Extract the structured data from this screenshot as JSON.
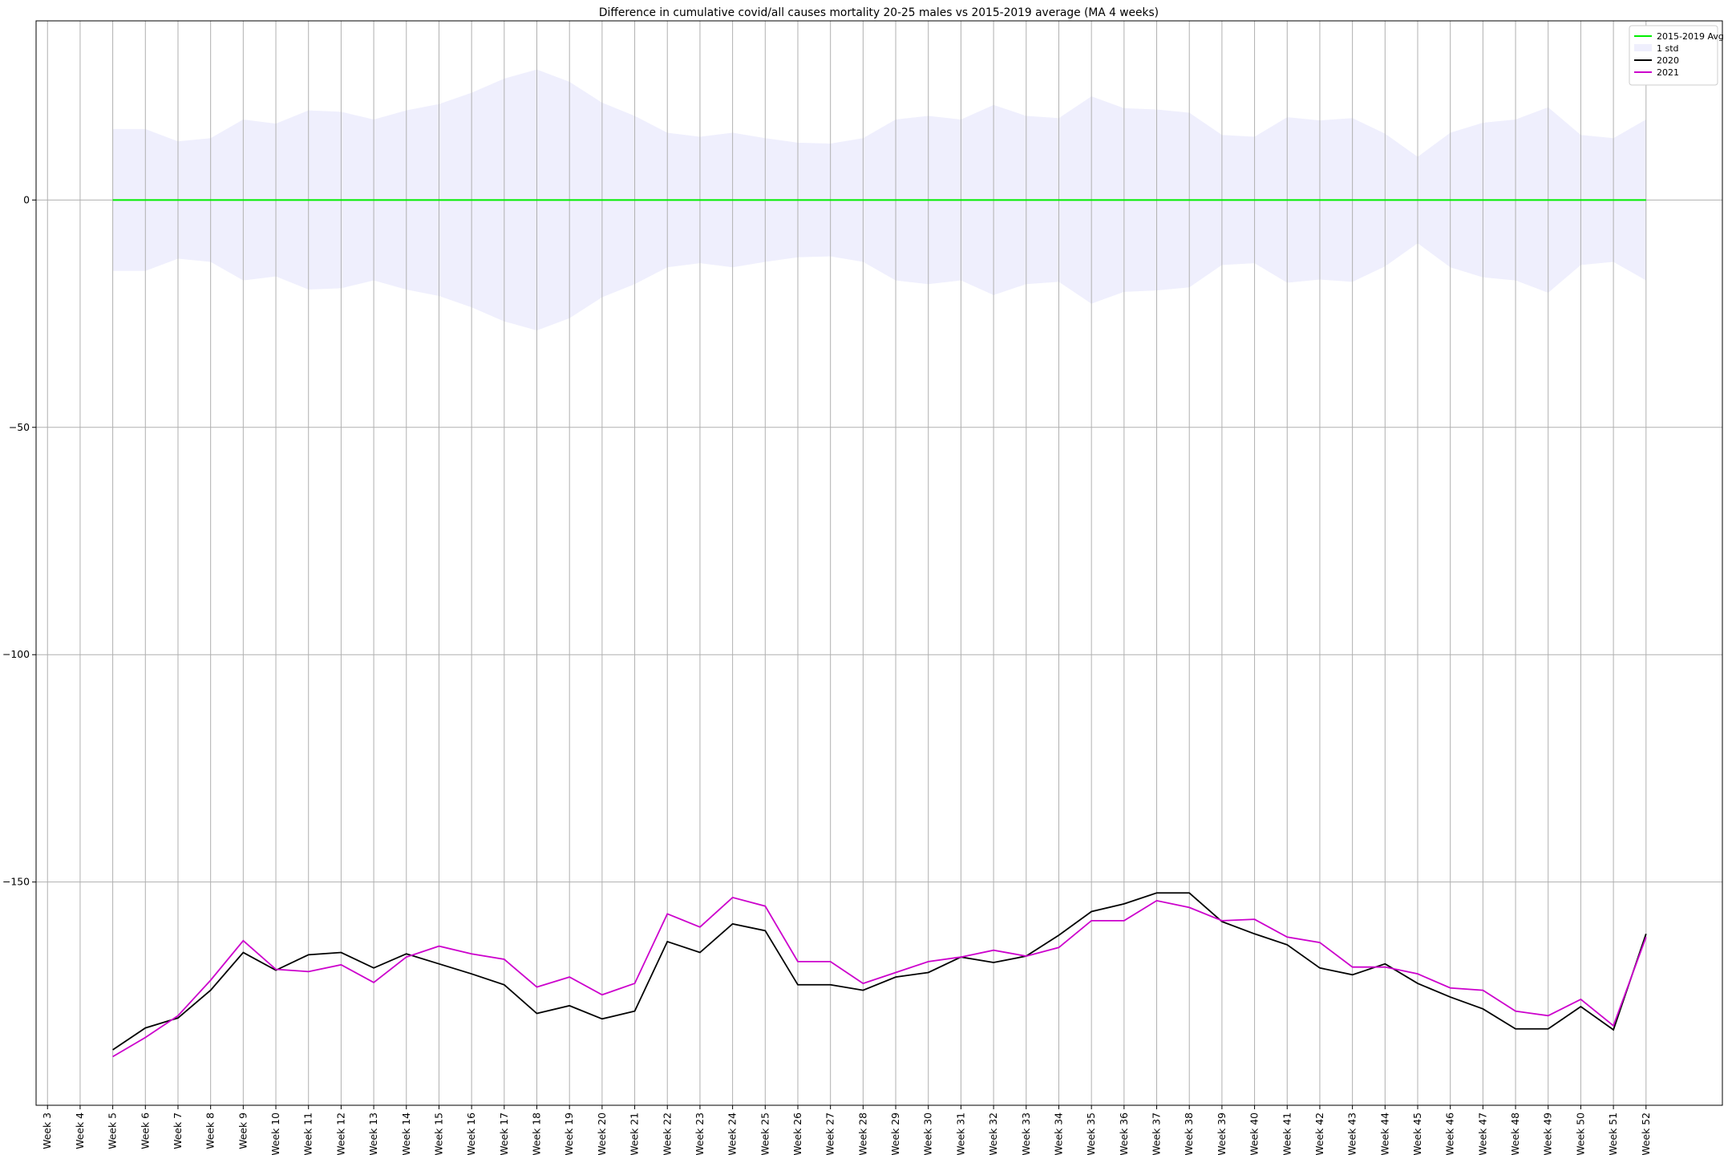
{
  "chart_data": {
    "type": "line",
    "title": "Difference in cumulative covid/all causes mortality 20-25 males vs 2015-2019 average (MA 4 weeks)",
    "categories": [
      "Week 3",
      "Week 4",
      "Week 5",
      "Week 6",
      "Week 7",
      "Week 8",
      "Week 9",
      "Week 10",
      "Week 11",
      "Week 12",
      "Week 13",
      "Week 14",
      "Week 15",
      "Week 16",
      "Week 17",
      "Week 18",
      "Week 19",
      "Week 20",
      "Week 21",
      "Week 22",
      "Week 23",
      "Week 24",
      "Week 25",
      "Week 26",
      "Week 27",
      "Week 28",
      "Week 29",
      "Week 30",
      "Week 31",
      "Week 32",
      "Week 33",
      "Week 34",
      "Week 35",
      "Week 36",
      "Week 37",
      "Week 38",
      "Week 39",
      "Week 40",
      "Week 41",
      "Week 42",
      "Week 43",
      "Week 44",
      "Week 45",
      "Week 46",
      "Week 47",
      "Week 48",
      "Week 49",
      "Week 50",
      "Week 51",
      "Week 52"
    ],
    "series": [
      {
        "name": "2015-2019 Avg",
        "color": "#00ee00",
        "values": [
          null,
          null,
          0,
          0,
          0,
          0,
          0,
          0,
          0,
          0,
          0,
          0,
          0,
          0,
          0,
          0,
          0,
          0,
          0,
          0,
          0,
          0,
          0,
          0,
          0,
          0,
          0,
          0,
          0,
          0,
          0,
          0,
          0,
          0,
          0,
          0,
          0,
          0,
          0,
          0,
          0,
          0,
          0,
          0,
          0,
          0,
          0,
          0,
          0,
          0
        ]
      },
      {
        "name": "1 std",
        "color": "#efeffd",
        "band": true,
        "values": [
          null,
          null,
          15.6,
          15.6,
          12.9,
          13.6,
          17.7,
          16.8,
          19.7,
          19.4,
          17.7,
          19.7,
          21.1,
          23.6,
          26.7,
          28.7,
          26.0,
          21.4,
          18.5,
          14.8,
          13.9,
          14.8,
          13.6,
          12.6,
          12.4,
          13.6,
          17.7,
          18.5,
          17.7,
          20.9,
          18.5,
          18.0,
          22.8,
          20.2,
          19.9,
          19.2,
          14.3,
          13.9,
          18.2,
          17.5,
          18.0,
          14.6,
          9.5,
          14.8,
          17.0,
          17.7,
          20.4,
          14.3,
          13.6,
          17.7
        ]
      },
      {
        "name": "2020",
        "color": "#000000",
        "values": [
          null,
          null,
          -186.9,
          -182.1,
          -179.9,
          -173.8,
          -165.5,
          -169.4,
          -166.0,
          -165.5,
          -168.9,
          -165.8,
          -168.0,
          -170.2,
          -172.6,
          -178.9,
          -177.2,
          -180.1,
          -178.4,
          -163.1,
          -165.5,
          -159.2,
          -160.7,
          -172.6,
          -172.6,
          -173.8,
          -170.9,
          -169.9,
          -166.5,
          -167.7,
          -166.3,
          -161.7,
          -156.5,
          -154.8,
          -152.4,
          -152.4,
          -158.7,
          -161.4,
          -163.8,
          -168.9,
          -170.4,
          -168.0,
          -172.3,
          -175.3,
          -177.9,
          -182.3,
          -182.3,
          -177.4,
          -182.5,
          -161.4
        ]
      },
      {
        "name": "2021",
        "color": "#cc00cc",
        "values": [
          null,
          null,
          -188.4,
          -184.2,
          -179.4,
          -171.6,
          -162.9,
          -169.2,
          -169.7,
          -168.2,
          -172.1,
          -166.5,
          -164.1,
          -165.8,
          -167.0,
          -173.1,
          -170.9,
          -174.8,
          -172.3,
          -157.0,
          -159.9,
          -153.4,
          -155.3,
          -167.5,
          -167.5,
          -172.3,
          -169.9,
          -167.5,
          -166.5,
          -165.0,
          -166.3,
          -164.4,
          -158.5,
          -158.5,
          -154.1,
          -155.6,
          -158.5,
          -158.2,
          -162.1,
          -163.3,
          -168.7,
          -168.7,
          -170.2,
          -173.3,
          -173.8,
          -178.4,
          -179.4,
          -175.8,
          -181.6,
          -162.1
        ]
      }
    ],
    "ylim": [
      -199.1,
      39.4
    ],
    "yticks": [
      {
        "value": -150,
        "label": "−150"
      },
      {
        "value": -100,
        "label": "−100"
      },
      {
        "value": -50,
        "label": "−50"
      },
      0
    ],
    "grid": true,
    "legend": "upper right"
  }
}
